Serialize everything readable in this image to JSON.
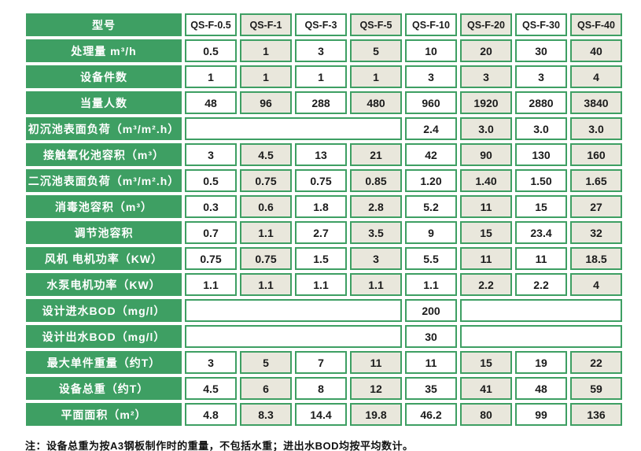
{
  "colors": {
    "green": "#3E9F63",
    "beige": "#E9E7DC",
    "cell_white": "#FFFFFF",
    "text_dark": "#1B1B1B",
    "label_text": "#FFFFFF"
  },
  "table": {
    "header_label": "型号",
    "models": [
      "QS-F-0.5",
      "QS-F-1",
      "QS-F-3",
      "QS-F-5",
      "QS-F-10",
      "QS-F-20",
      "QS-F-30",
      "QS-F-40"
    ],
    "rows": [
      {
        "label": "处理量 m³/h",
        "cells": [
          "0.5",
          "1",
          "3",
          "5",
          "10",
          "20",
          "30",
          "40"
        ]
      },
      {
        "label": "设备件数",
        "cells": [
          "1",
          "1",
          "1",
          "1",
          "3",
          "3",
          "3",
          "4"
        ]
      },
      {
        "label": "当量人数",
        "cells": [
          "48",
          "96",
          "288",
          "480",
          "960",
          "1920",
          "2880",
          "3840"
        ]
      },
      {
        "label": "初沉池表面负荷（m³/m².h）",
        "cells": [
          {
            "text": "",
            "span": 4
          },
          "2.4",
          "3.0",
          "3.0",
          "3.0"
        ]
      },
      {
        "label": "接触氧化池容积（m³）",
        "cells": [
          "3",
          "4.5",
          "13",
          "21",
          "42",
          "90",
          "130",
          "160"
        ]
      },
      {
        "label": "二沉池表面负荷（m³/m².h）",
        "cells": [
          "0.5",
          "0.75",
          "0.75",
          "0.85",
          "1.20",
          "1.40",
          "1.50",
          "1.65"
        ]
      },
      {
        "label": "消毒池容积（m³）",
        "cells": [
          "0.3",
          "0.6",
          "1.8",
          "2.8",
          "5.2",
          "11",
          "15",
          "27"
        ]
      },
      {
        "label": "调节池容积",
        "cells": [
          "0.7",
          "1.1",
          "2.7",
          "3.5",
          "9",
          "15",
          "23.4",
          "32"
        ]
      },
      {
        "label": "风机 电机功率（KW）",
        "cells": [
          "0.75",
          "0.75",
          "1.5",
          "3",
          "5.5",
          "11",
          "11",
          "18.5"
        ]
      },
      {
        "label": "水泵电机功率（KW）",
        "cells": [
          "1.1",
          "1.1",
          "1.1",
          "1.1",
          "1.1",
          "2.2",
          "2.2",
          "4"
        ]
      },
      {
        "label": "设计进水BOD（mg/l）",
        "cells": [
          {
            "text": "",
            "span": 4
          },
          "200",
          {
            "text": "",
            "span": 3
          }
        ]
      },
      {
        "label": "设计出水BOD（mg/l）",
        "cells": [
          {
            "text": "",
            "span": 4
          },
          "30",
          {
            "text": "",
            "span": 3
          }
        ]
      },
      {
        "label": "最大单件重量（约T）",
        "cells": [
          "3",
          "5",
          "7",
          "11",
          "11",
          "15",
          "19",
          "22"
        ]
      },
      {
        "label": "设备总重（约T）",
        "cells": [
          "4.5",
          "6",
          "8",
          "12",
          "35",
          "41",
          "48",
          "59"
        ]
      },
      {
        "label": "平面面积（m²）",
        "cells": [
          "4.8",
          "8.3",
          "14.4",
          "19.8",
          "46.2",
          "80",
          "99",
          "136"
        ]
      }
    ]
  },
  "note": "注：设备总重为按A3钢板制作时的重量，不包括水重；进出水BOD均按平均数计。"
}
